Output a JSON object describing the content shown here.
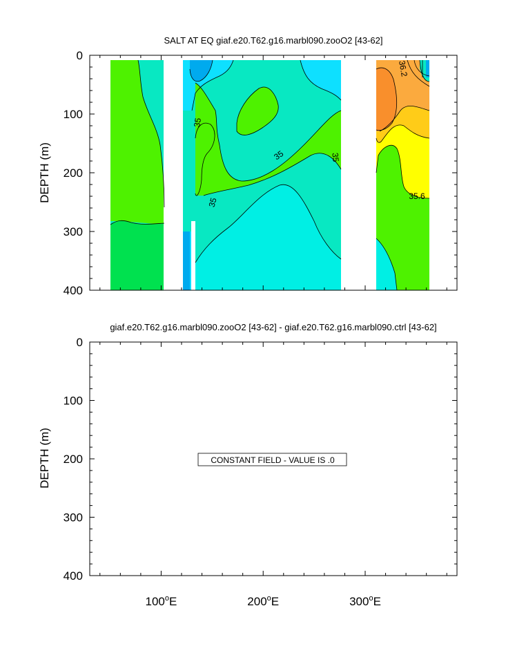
{
  "chart_data": [
    {
      "type": "heatmap",
      "title": "SALT AT EQ giaf.e20.T62.g16.marbl090.zooO2 [43-62]",
      "ylabel": "DEPTH (m)",
      "xlabel": "",
      "xlim": [
        30,
        390
      ],
      "ylim": [
        400,
        0
      ],
      "x_ticks": [],
      "y_ticks": [
        {
          "value": 0,
          "label": "0"
        },
        {
          "value": 100,
          "label": "100"
        },
        {
          "value": 200,
          "label": "200"
        },
        {
          "value": 300,
          "label": "300"
        },
        {
          "value": 400,
          "label": "400"
        }
      ],
      "contour_labels": [
        "35",
        "35",
        "35",
        "35",
        "36.2",
        "35.6"
      ],
      "colors": {
        "s34_6": "#00aaee",
        "s34_8": "#0ee0ff",
        "s35_0": "#00efe4",
        "s35_2": "#08e8c2",
        "s35_4": "#00e14f",
        "s35_5": "#4ef200",
        "s35_7": "#ffff00",
        "s35_9": "#ffcc18",
        "s36_0": "#fbaa3e",
        "s36_2": "#f98f2c"
      },
      "land_mask_lon": [
        [
          97,
          118
        ],
        [
          279,
          316
        ]
      ],
      "grid": false
    },
    {
      "type": "heatmap",
      "title": "giaf.e20.T62.g16.marbl090.zooO2 [43-62] - giaf.e20.T62.g16.marbl090.ctrl [43-62]",
      "ylabel": "DEPTH (m)",
      "xlabel": "",
      "xlim": [
        30,
        390
      ],
      "ylim": [
        400,
        0
      ],
      "x_ticks": [
        {
          "value": 100,
          "label": "100°E"
        },
        {
          "value": 200,
          "label": "200°E"
        },
        {
          "value": 300,
          "label": "300°E"
        }
      ],
      "y_ticks": [
        {
          "value": 0,
          "label": "0"
        },
        {
          "value": 100,
          "label": "100"
        },
        {
          "value": 200,
          "label": "200"
        },
        {
          "value": 300,
          "label": "300"
        },
        {
          "value": 400,
          "label": "400"
        }
      ],
      "annotation": "CONSTANT FIELD - VALUE IS .0",
      "constant_value": 0,
      "grid": false
    }
  ]
}
